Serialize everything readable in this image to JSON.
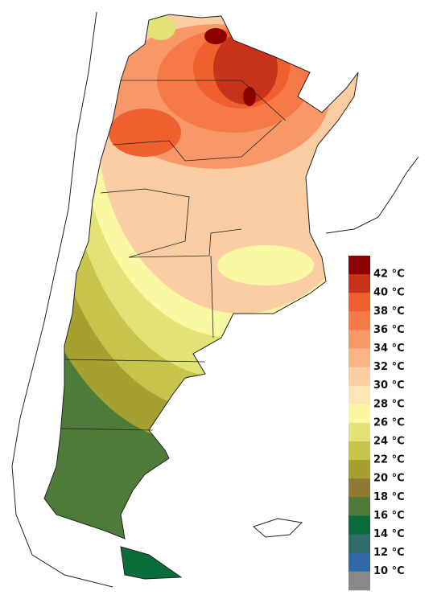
{
  "legend": {
    "colors": [
      "#8b0000",
      "#c8321a",
      "#f0602e",
      "#f57a48",
      "#f89868",
      "#f9b386",
      "#fbcda3",
      "#fde6b6",
      "#fbf8a4",
      "#e2e277",
      "#c6c44a",
      "#a6a030",
      "#8e7a34",
      "#4e7a3a",
      "#0b6e3a",
      "#316c6a",
      "#3068a8",
      "#888888"
    ],
    "labels": [
      "42 °C",
      "40 °C",
      "38 °C",
      "36 °C",
      "34 °C",
      "32 °C",
      "30 °C",
      "28 °C",
      "26 °C",
      "24 °C",
      "22 °C",
      "20 °C",
      "18 °C",
      "16 °C",
      "14 °C",
      "12 °C",
      "10 °C"
    ]
  }
}
